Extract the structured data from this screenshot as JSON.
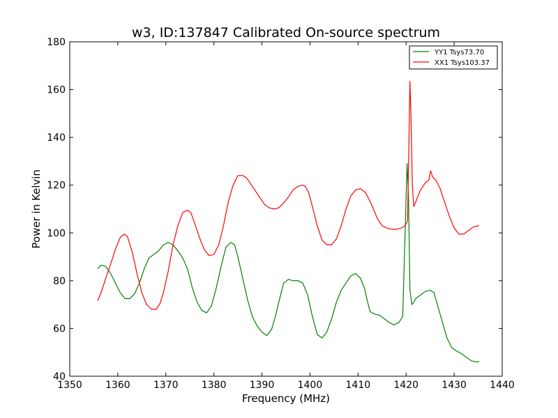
{
  "chart_data": {
    "type": "line",
    "title": "w3, ID:137847 Calibrated On-source spectrum",
    "xlabel": "Frequency (MHz)",
    "ylabel": "Power in Kelvin",
    "xlim": [
      1350,
      1440
    ],
    "ylim": [
      40,
      180
    ],
    "xticks": [
      1350,
      1360,
      1370,
      1380,
      1390,
      1400,
      1410,
      1420,
      1430,
      1440
    ],
    "yticks": [
      40,
      60,
      80,
      100,
      120,
      140,
      160,
      180
    ],
    "grid": false,
    "legend_position": "top-right",
    "series": [
      {
        "name": "YY1 Tsys73.70",
        "color": "#008000",
        "x": [
          1355.8,
          1356.5,
          1357.5,
          1358.5,
          1359.5,
          1360.5,
          1361.5,
          1362.5,
          1363.5,
          1364.5,
          1365.5,
          1366.5,
          1367.5,
          1368.5,
          1369.5,
          1370.5,
          1371.5,
          1372.5,
          1373.5,
          1374.5,
          1375.5,
          1376.5,
          1377.5,
          1378.5,
          1379.5,
          1380.5,
          1381.5,
          1382.5,
          1383.5,
          1384.3,
          1385.0,
          1386.0,
          1387.0,
          1388.0,
          1389.0,
          1390.0,
          1391.0,
          1392.0,
          1392.8,
          1393.5,
          1394.5,
          1395.5,
          1396.5,
          1397.5,
          1398.5,
          1399.5,
          1400.5,
          1401.5,
          1402.5,
          1403.5,
          1404.5,
          1405.5,
          1406.5,
          1407.5,
          1408.5,
          1409.5,
          1410.5,
          1411.3,
          1412.0,
          1412.5,
          1413.5,
          1414.5,
          1415.5,
          1416.5,
          1417.5,
          1418.5,
          1419.3,
          1420.2,
          1420.5,
          1420.8,
          1421.2,
          1421.6,
          1422.0,
          1423.0,
          1424.0,
          1425.0,
          1425.8,
          1426.5,
          1427.5,
          1428.5,
          1429.5,
          1430.5,
          1431.5,
          1432.5,
          1433.5,
          1434.5,
          1435.2
        ],
        "y": [
          85,
          86.5,
          86,
          83,
          79,
          75,
          72.5,
          72.5,
          74.5,
          79,
          85,
          89.5,
          91,
          92.5,
          95,
          96,
          95,
          92.5,
          89.5,
          85,
          77,
          71,
          67.5,
          66.5,
          69.5,
          77,
          86,
          94,
          96,
          95,
          90,
          81,
          72,
          65,
          61,
          58.5,
          57,
          59.5,
          65,
          71,
          79,
          80.5,
          80,
          80,
          79,
          74,
          65,
          57.5,
          56,
          58.5,
          64,
          71,
          76,
          79,
          82,
          83,
          81,
          77,
          71,
          67,
          66,
          65.5,
          64,
          62.5,
          61.5,
          62.5,
          65,
          129,
          115,
          76,
          70,
          71,
          72.5,
          74,
          75.5,
          76,
          75,
          70,
          63,
          56,
          52,
          50.5,
          49.5,
          48,
          46.5,
          46,
          46
        ]
      },
      {
        "name": "XX1 Tsys103.37",
        "color": "#ff0000",
        "x": [
          1355.8,
          1356.5,
          1357.5,
          1358.5,
          1359.5,
          1360.5,
          1361.3,
          1362.0,
          1363.0,
          1364.0,
          1365.0,
          1366.0,
          1367.0,
          1368.0,
          1368.8,
          1369.5,
          1370.5,
          1371.5,
          1372.5,
          1373.5,
          1374.5,
          1375.2,
          1376.0,
          1377.0,
          1378.0,
          1379.0,
          1380.0,
          1381.0,
          1382.0,
          1383.0,
          1384.0,
          1385.0,
          1386.0,
          1386.8,
          1387.5,
          1388.5,
          1389.5,
          1390.5,
          1391.5,
          1392.5,
          1393.5,
          1394.5,
          1395.5,
          1396.5,
          1397.5,
          1398.5,
          1399.0,
          1399.7,
          1400.5,
          1401.5,
          1402.5,
          1403.5,
          1404.5,
          1405.5,
          1406.5,
          1407.5,
          1408.5,
          1409.5,
          1410.5,
          1411.5,
          1412.3,
          1413.0,
          1414.0,
          1415.0,
          1416.0,
          1417.0,
          1418.0,
          1419.0,
          1419.8,
          1420.3,
          1420.6,
          1420.8,
          1421.0,
          1421.3,
          1421.6,
          1422.0,
          1423.0,
          1424.0,
          1424.7,
          1425.1,
          1425.5,
          1426.2,
          1427.0,
          1428.0,
          1429.0,
          1430.0,
          1431.0,
          1432.0,
          1433.0,
          1434.0,
          1435.2
        ],
        "y": [
          71.5,
          75,
          81,
          87,
          93,
          98,
          99.5,
          98.5,
          92,
          83,
          75,
          70,
          68,
          68,
          70.5,
          75,
          84,
          95,
          103,
          108.5,
          109.5,
          108.5,
          104,
          98,
          93,
          90.5,
          91,
          95,
          103,
          113,
          120,
          124,
          124,
          123,
          121,
          118,
          115,
          112,
          110.5,
          110,
          110.5,
          112.5,
          115,
          118,
          119.5,
          120,
          119.5,
          117,
          111,
          103,
          97,
          95,
          95,
          97.5,
          103,
          110,
          115.5,
          118,
          118.5,
          117,
          114,
          111,
          106,
          103,
          102,
          101.5,
          101.5,
          102,
          103,
          105,
          140,
          163.5,
          150,
          120,
          111,
          113,
          118,
          121,
          122,
          126,
          123.5,
          122,
          119,
          113,
          107,
          102,
          99.5,
          99.5,
          101,
          102.5,
          103
        ]
      }
    ]
  }
}
